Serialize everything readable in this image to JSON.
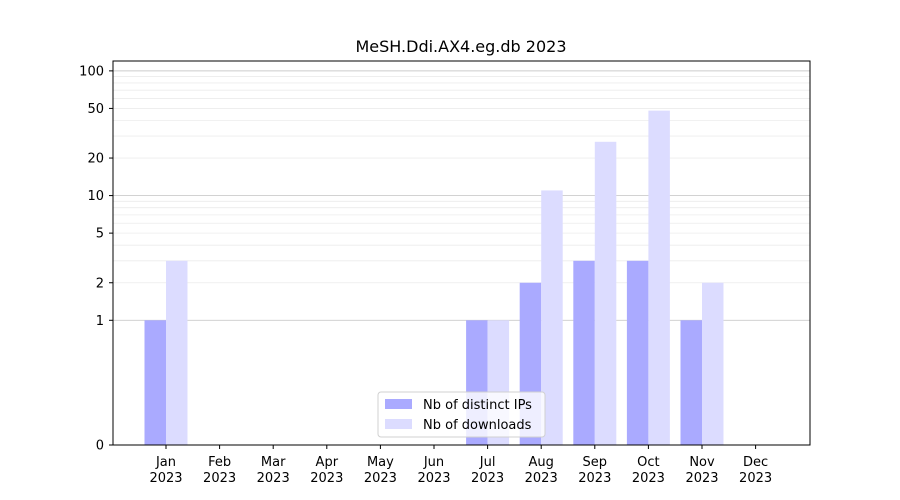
{
  "chart_data": {
    "type": "bar",
    "title": "MeSH.Ddi.AX4.eg.db 2023",
    "xlabel": "",
    "ylabel": "",
    "y_scale": "symlog",
    "ylim": [
      0,
      120
    ],
    "y_ticks": [
      0,
      1,
      2,
      5,
      10,
      20,
      50,
      100
    ],
    "y_tick_labels": [
      "0",
      "1",
      "2",
      "5",
      "10",
      "20",
      "50",
      "100"
    ],
    "grid": true,
    "legend_position": "bottom-center",
    "categories": [
      "Jan\n2023",
      "Feb\n2023",
      "Mar\n2023",
      "Apr\n2023",
      "May\n2023",
      "Jun\n2023",
      "Jul\n2023",
      "Aug\n2023",
      "Sep\n2023",
      "Oct\n2023",
      "Nov\n2023",
      "Dec\n2023"
    ],
    "series": [
      {
        "name": "Nb of distinct IPs",
        "color": "#aaaaff",
        "values": [
          1,
          0,
          0,
          0,
          0,
          0,
          1,
          2,
          3,
          3,
          1,
          0
        ]
      },
      {
        "name": "Nb of downloads",
        "color": "#dcdcff",
        "values": [
          3,
          0,
          0,
          0,
          0,
          0,
          1,
          11,
          27,
          48,
          2,
          0
        ]
      }
    ]
  }
}
